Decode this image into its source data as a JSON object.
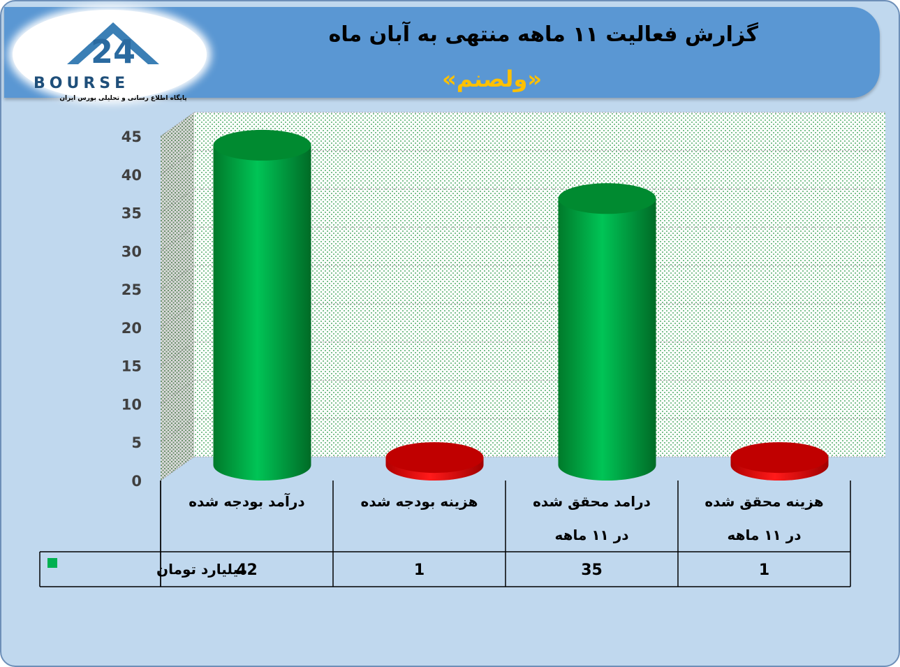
{
  "header": {
    "title": "گزارش فعالیت ۱۱ ماهه منتهی به آبان ماه",
    "subtitle": "«ولصنم»"
  },
  "logo": {
    "number": "24",
    "word": "BOURSE",
    "tagline": "پایگاه اطلاع رسانی و تحلیلی بورس ایران"
  },
  "colors": {
    "frame": "#c0d8ee",
    "header": "#5a97d3",
    "title_text": "#000000",
    "subtitle_text": "#ffc000",
    "revenue_green": "#00b050",
    "cost_red": "#ff0000"
  },
  "chart_data": {
    "type": "bar",
    "style": "3d-cylinder",
    "categories": [
      [
        "درآمد بودجه شده"
      ],
      [
        "هزینه بودجه شده"
      ],
      [
        "درامد محقق شده",
        "در ۱۱ ماهه"
      ],
      [
        "هزینه محقق شده",
        "در ۱۱ ماهه"
      ]
    ],
    "series": [
      {
        "name": "میلیارد تومان",
        "values": [
          42,
          1,
          35,
          1
        ]
      }
    ],
    "bar_colors": [
      "#00b050",
      "#ff0000",
      "#00b050",
      "#ff0000"
    ],
    "ylim": [
      0,
      45
    ],
    "yticks": [
      0,
      5,
      10,
      15,
      20,
      25,
      30,
      35,
      40,
      45
    ],
    "grid": true,
    "legend": "data-table"
  }
}
